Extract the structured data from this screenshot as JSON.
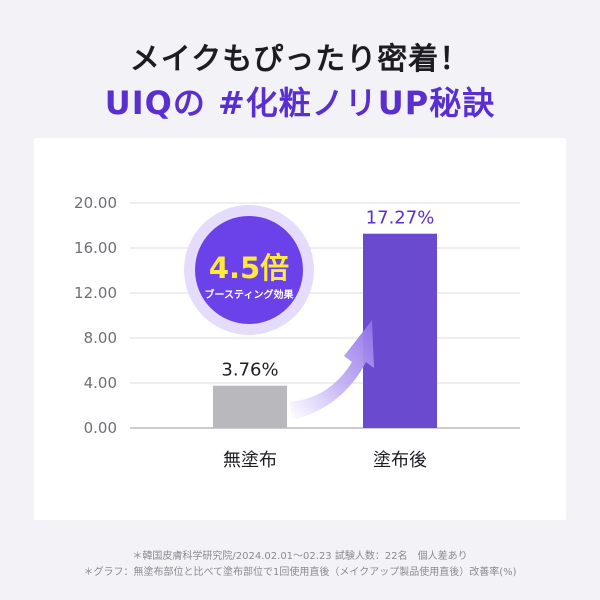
{
  "heading": {
    "line1": "メイクもぴったり密着！",
    "line2": "UIQの #化粧ノリUP秘訣"
  },
  "badge": {
    "value": "4.5倍",
    "caption": "ブースティング効果"
  },
  "footnotes": {
    "line1": "＊韓国皮膚科学研究院/2024.02.01～02.23 試験人数：22名　個人差あり",
    "line2": "＊グラフ：無塗布部位と比べて塗布部位で1回使用直後（メイクアップ製品使用直後）改善率(%)"
  },
  "colors": {
    "before_bar": "#b9b9bd",
    "after_bar": "#6a4bd0",
    "accent": "#5a2fcf",
    "badge_inner": "#6b41ea",
    "badge_ring": "#e5dcfb",
    "badge_text": "#ffe93a"
  },
  "chart_data": {
    "type": "bar",
    "categories": [
      "無塗布",
      "塗布後"
    ],
    "values": [
      3.76,
      17.27
    ],
    "data_labels": [
      "3.76%",
      "17.27%"
    ],
    "ylim": [
      0,
      20
    ],
    "yticks": [
      "0.00",
      "4.00",
      "8.00",
      "12.00",
      "16.00",
      "20.00"
    ],
    "grid": true
  }
}
